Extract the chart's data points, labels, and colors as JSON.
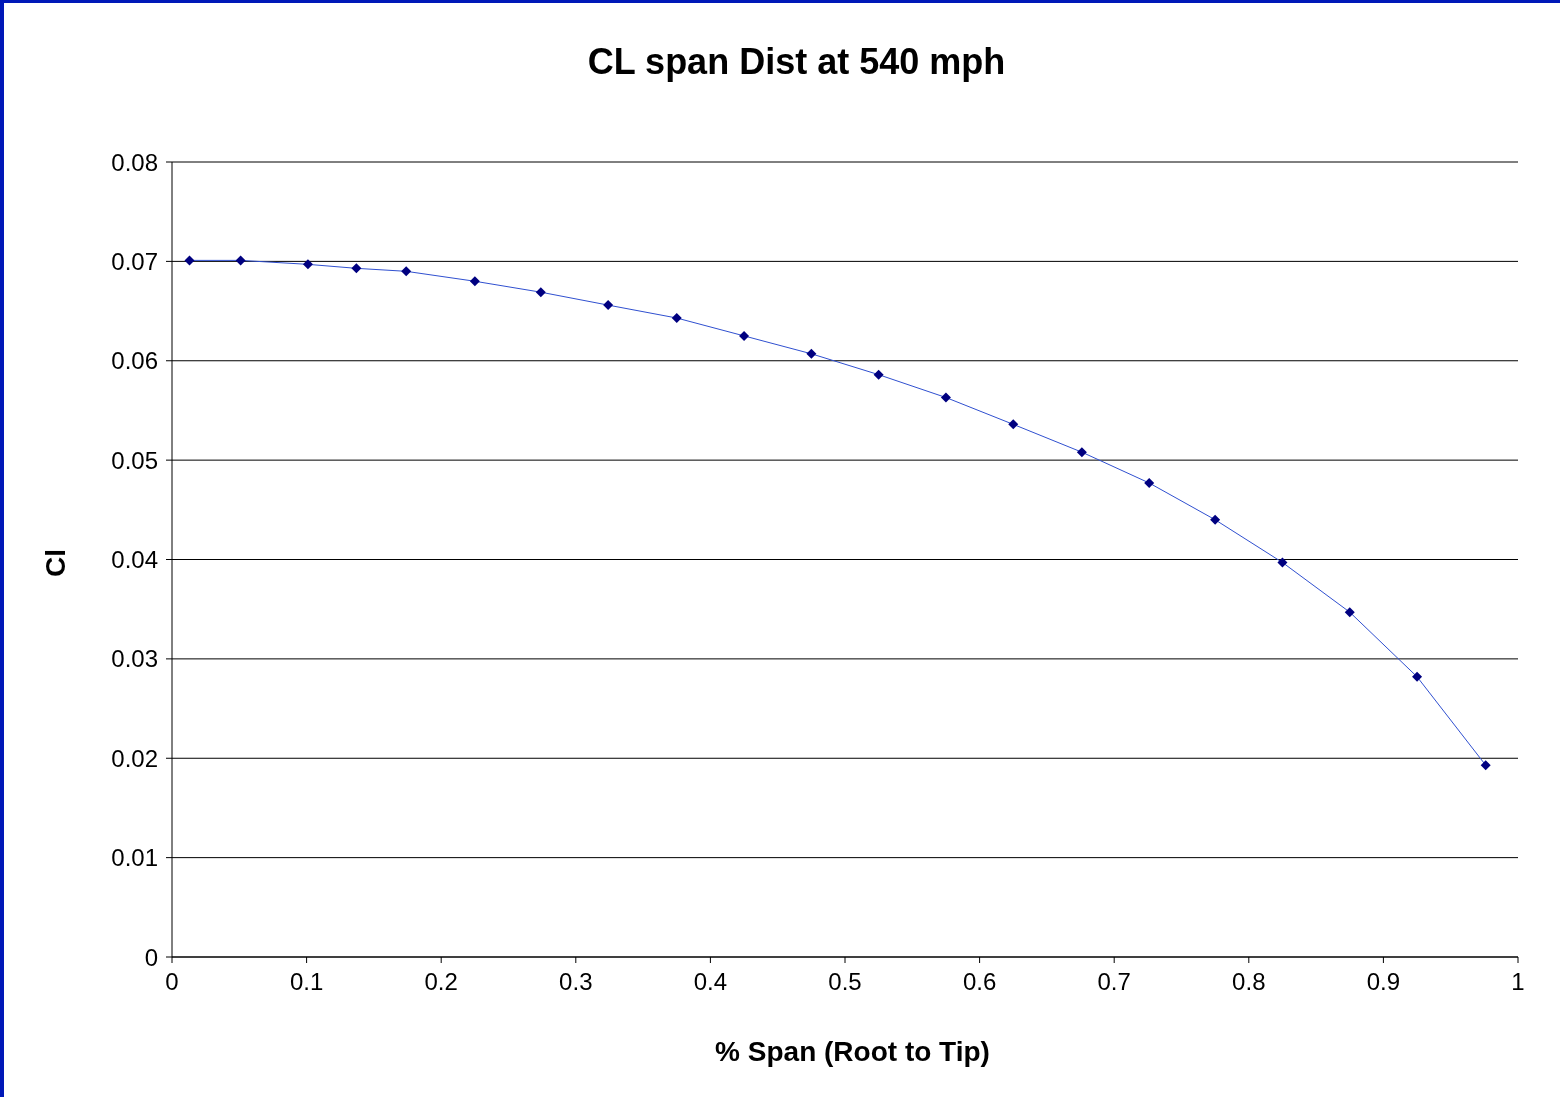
{
  "chart_data": {
    "type": "line",
    "title": "CL span Dist at 540 mph",
    "xlabel": "% Span (Root to Tip)",
    "ylabel": "Cl",
    "x": [
      0.013,
      0.051,
      0.101,
      0.137,
      0.174,
      0.225,
      0.274,
      0.324,
      0.375,
      0.425,
      0.475,
      0.525,
      0.575,
      0.625,
      0.676,
      0.726,
      0.775,
      0.825,
      0.875,
      0.925,
      0.976
    ],
    "series": [
      {
        "color": "#000080",
        "values": [
          0.0701,
          0.0701,
          0.0697,
          0.0693,
          0.069,
          0.068,
          0.0669,
          0.0656,
          0.0643,
          0.0625,
          0.0607,
          0.0586,
          0.0563,
          0.0536,
          0.0508,
          0.0477,
          0.044,
          0.0397,
          0.0347,
          0.0282,
          0.0193
        ]
      }
    ],
    "xlim": [
      0,
      1
    ],
    "xticks": [
      0,
      0.1,
      0.2,
      0.3,
      0.4,
      0.5,
      0.6,
      0.7,
      0.8,
      0.9,
      1
    ],
    "ylim": [
      0,
      0.08
    ],
    "yticks": [
      0,
      0.01,
      0.02,
      0.03,
      0.04,
      0.05,
      0.06,
      0.07,
      0.08
    ],
    "grid": "y",
    "legend": false,
    "marker": "diamond",
    "line_style": "solid"
  }
}
